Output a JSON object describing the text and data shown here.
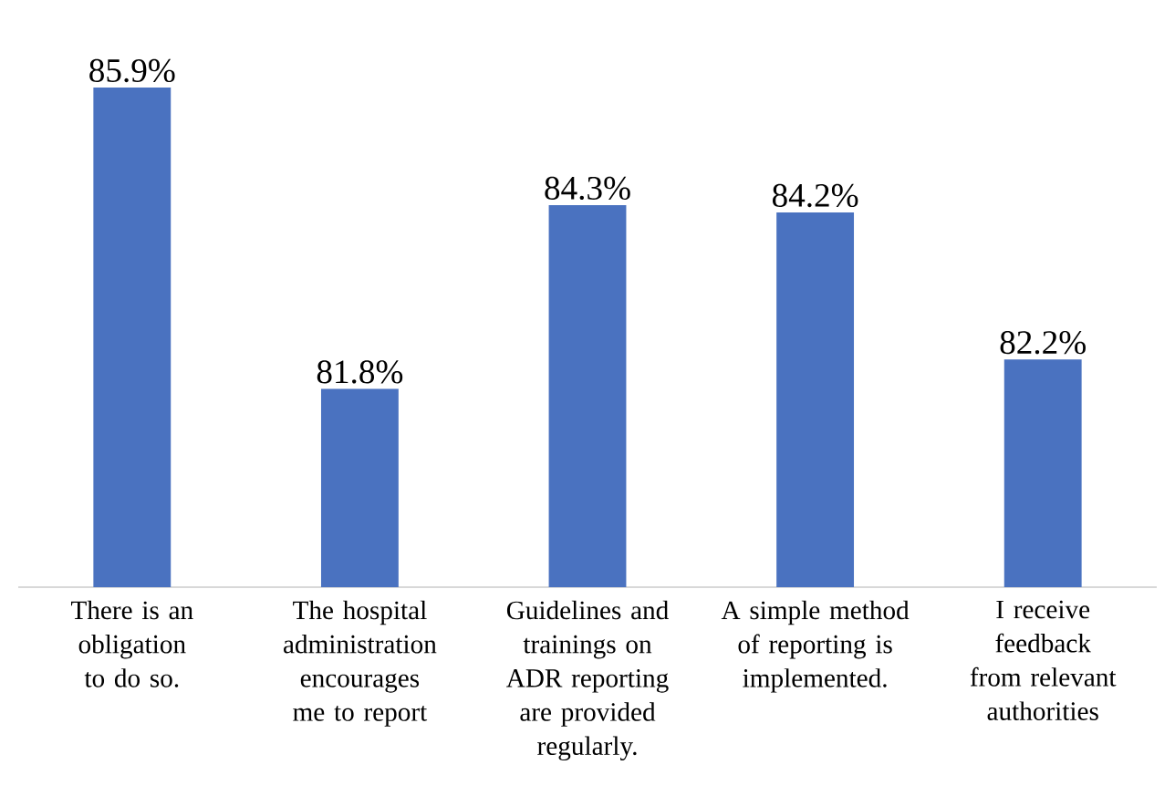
{
  "chart_data": {
    "type": "bar",
    "categories": [
      "There is an obligation to do so.",
      "The hospital administration encourages me to report",
      "Guidelines and trainings on ADR reporting are provided regularly.",
      "A simple method of reporting is implemented.",
      "I receive feedback from relevant authorities"
    ],
    "values": [
      85.9,
      81.8,
      84.3,
      84.2,
      82.2
    ],
    "value_labels": [
      "85.9%",
      "81.8%",
      "84.3%",
      "84.2%",
      "82.2%"
    ],
    "color": "#4a72c0",
    "ylim": [
      79.1,
      85.9
    ],
    "tick_labels": "x"
  }
}
